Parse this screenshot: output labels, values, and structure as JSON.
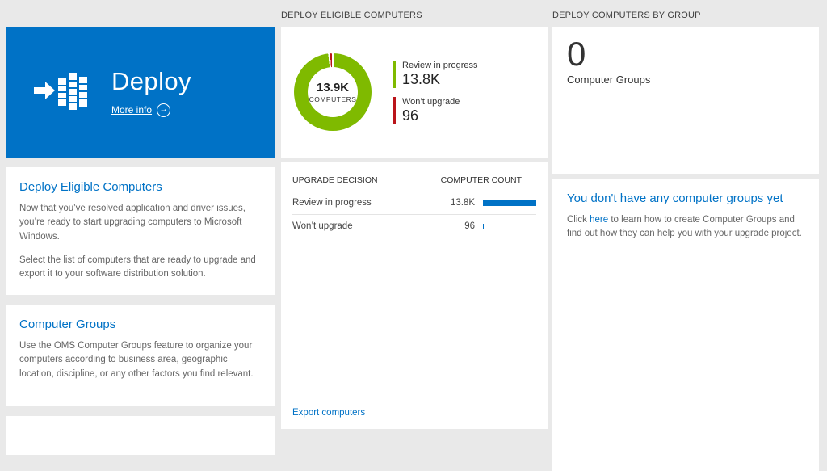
{
  "colors": {
    "accent_blue": "#0072c6",
    "green": "#7fba00",
    "red": "#ba141a",
    "bar_blue": "#0072c6",
    "page_bg": "#e9e9e9"
  },
  "headers": {
    "middle": "DEPLOY ELIGIBLE COMPUTERS",
    "right": "DEPLOY COMPUTERS BY GROUP"
  },
  "deploy_tile": {
    "title": "Deploy",
    "more_info_label": "More info"
  },
  "left_panel": {
    "eligible": {
      "heading": "Deploy Eligible Computers",
      "para1": "Now that you’ve resolved application and driver issues, you’re ready to start upgrading computers to Microsoft Windows.",
      "para2": "Select the list of computers that are ready to upgrade and export it to your software distribution solution."
    },
    "groups": {
      "heading": "Computer Groups",
      "para": "Use the OMS Computer Groups feature to organize your computers according to business area, geographic location, discipline, or any other factors you find relevant."
    }
  },
  "donut_card": {
    "center_value": "13.9K",
    "center_label": "COMPUTERS",
    "legend": [
      {
        "label": "Review in progress",
        "value": "13.8K"
      },
      {
        "label": "Won’t upgrade",
        "value": "96"
      }
    ]
  },
  "table_card": {
    "col_decision": "UPGRADE DECISION",
    "col_count": "COMPUTER COUNT",
    "rows": [
      {
        "label": "Review in progress",
        "value": "13.8K",
        "bar_pct": 100
      },
      {
        "label": "Won’t upgrade",
        "value": "96",
        "bar_pct": 2
      }
    ],
    "export_label": "Export computers"
  },
  "groups_card": {
    "count": "0",
    "label": "Computer Groups"
  },
  "groups_panel": {
    "heading": "You don't have any computer groups yet",
    "text_before": "Click ",
    "link_label": "here",
    "text_after": " to learn how to create Computer Groups and find out how they can help you with your upgrade project."
  },
  "chart_data": {
    "type": "pie",
    "title": "Deploy Eligible Computers",
    "labels": [
      "Review in progress",
      "Won't upgrade"
    ],
    "values": [
      13800,
      96
    ],
    "colors": [
      "#7fba00",
      "#ba141a"
    ],
    "center_value": "13.9K",
    "center_label": "COMPUTERS",
    "legend_position": "right"
  }
}
